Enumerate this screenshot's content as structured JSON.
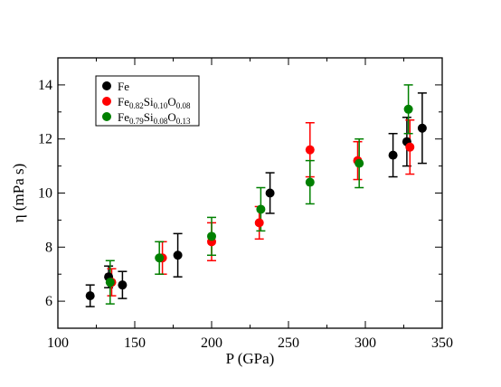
{
  "chart_data": {
    "type": "scatter",
    "xlabel": "P (GPa)",
    "ylabel": "η (mPa s)",
    "xlim": [
      100,
      350
    ],
    "ylim": [
      5,
      15
    ],
    "x_ticks": [
      100,
      150,
      200,
      250,
      300,
      350
    ],
    "y_ticks": [
      6,
      8,
      10,
      12,
      14
    ],
    "grid": false,
    "legend_position": "top-left",
    "series": [
      {
        "name": "Fe",
        "legend_parts": [
          {
            "t": "Fe",
            "s": false
          }
        ],
        "color": "#000000",
        "points": [
          {
            "x": 121,
            "y": 6.2,
            "err": 0.4
          },
          {
            "x": 133,
            "y": 6.9,
            "err": 0.4
          },
          {
            "x": 142,
            "y": 6.6,
            "err": 0.5
          },
          {
            "x": 178,
            "y": 7.7,
            "err": 0.8
          },
          {
            "x": 238,
            "y": 10.0,
            "err": 0.75
          },
          {
            "x": 318,
            "y": 11.4,
            "err": 0.8
          },
          {
            "x": 327,
            "y": 11.9,
            "err": 0.9
          },
          {
            "x": 337,
            "y": 12.4,
            "err": 1.3
          }
        ]
      },
      {
        "name": "Fe0.82Si0.10O0.08",
        "legend_parts": [
          {
            "t": "Fe",
            "s": false
          },
          {
            "t": "0.82",
            "s": true
          },
          {
            "t": "Si",
            "s": false
          },
          {
            "t": "0.10",
            "s": true
          },
          {
            "t": "O",
            "s": false
          },
          {
            "t": "0.08",
            "s": true
          }
        ],
        "color": "#ff0000",
        "points": [
          {
            "x": 135,
            "y": 6.7,
            "err": 0.5
          },
          {
            "x": 168,
            "y": 7.6,
            "err": 0.6
          },
          {
            "x": 200,
            "y": 8.2,
            "err": 0.7
          },
          {
            "x": 231,
            "y": 8.9,
            "err": 0.6
          },
          {
            "x": 264,
            "y": 11.6,
            "err": 1.0
          },
          {
            "x": 295,
            "y": 11.2,
            "err": 0.7
          },
          {
            "x": 329,
            "y": 11.7,
            "err": 1.0
          }
        ]
      },
      {
        "name": "Fe0.79Si0.08O0.13",
        "legend_parts": [
          {
            "t": "Fe",
            "s": false
          },
          {
            "t": "0.79",
            "s": true
          },
          {
            "t": "Si",
            "s": false
          },
          {
            "t": "0.08",
            "s": true
          },
          {
            "t": "O",
            "s": false
          },
          {
            "t": "0.13",
            "s": true
          }
        ],
        "color": "#008000",
        "points": [
          {
            "x": 134,
            "y": 6.7,
            "err": 0.8
          },
          {
            "x": 166,
            "y": 7.6,
            "err": 0.6
          },
          {
            "x": 200,
            "y": 8.4,
            "err": 0.7
          },
          {
            "x": 232,
            "y": 9.4,
            "err": 0.8
          },
          {
            "x": 264,
            "y": 10.4,
            "err": 0.8
          },
          {
            "x": 296,
            "y": 11.1,
            "err": 0.9
          },
          {
            "x": 328,
            "y": 13.1,
            "err": 0.9
          }
        ]
      }
    ]
  }
}
